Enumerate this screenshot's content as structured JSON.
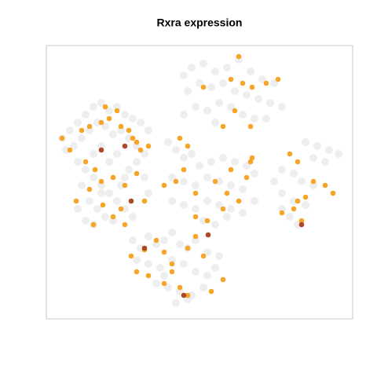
{
  "chart_data": {
    "type": "scatter",
    "title": "Rxra expression",
    "xlim": [
      0,
      390
    ],
    "ylim": [
      0,
      348
    ],
    "series": [
      {
        "color": "#e3e3e3",
        "x": [
          20,
          30,
          40,
          50,
          60,
          70,
          80,
          90,
          100,
          110,
          120,
          130,
          25,
          35,
          45,
          55,
          65,
          75,
          85,
          95,
          105,
          115,
          125,
          40,
          50,
          60,
          70,
          80,
          90,
          100,
          110,
          45,
          55,
          65,
          75,
          85,
          95,
          105,
          115,
          125,
          60,
          70,
          80,
          90,
          100,
          50,
          60,
          70,
          40,
          130,
          175,
          185,
          200,
          215,
          230,
          245,
          260,
          275,
          290,
          180,
          195,
          210,
          225,
          240,
          255,
          270,
          285,
          300,
          190,
          205,
          220,
          235,
          250,
          265,
          280,
          175,
          215,
          155,
          165,
          175,
          185,
          195,
          210,
          225,
          240,
          255,
          265,
          160,
          175,
          190,
          205,
          220,
          235,
          250,
          160,
          175,
          190,
          205,
          220,
          235,
          250,
          265,
          200,
          215,
          230,
          330,
          345,
          360,
          372,
          340,
          355,
          300,
          315,
          325,
          340,
          300,
          315,
          330,
          310,
          320,
          300,
          290,
          110,
          120,
          130,
          140,
          150,
          160,
          170,
          180,
          190,
          205,
          220,
          115,
          130,
          145,
          160,
          175,
          190,
          205,
          140,
          155,
          170,
          185,
          165,
          180,
          150,
          200,
          215
        ],
        "y": [
          230,
          240,
          250,
          260,
          270,
          275,
          265,
          270,
          260,
          255,
          250,
          240,
          215,
          220,
          230,
          240,
          250,
          245,
          235,
          240,
          230,
          220,
          210,
          200,
          190,
          180,
          170,
          160,
          150,
          140,
          130,
          170,
          150,
          140,
          130,
          125,
          170,
          190,
          200,
          180,
          210,
          220,
          200,
          210,
          180,
          125,
          120,
          160,
          140,
          160,
          310,
          320,
          325,
          315,
          320,
          330,
          315,
          305,
          300,
          290,
          300,
          295,
          300,
          290,
          285,
          280,
          275,
          270,
          270,
          265,
          275,
          270,
          260,
          255,
          255,
          260,
          250,
          225,
          215,
          205,
          210,
          195,
          200,
          205,
          200,
          195,
          185,
          180,
          175,
          170,
          180,
          175,
          170,
          165,
          150,
          145,
          140,
          150,
          145,
          140,
          135,
          150,
          125,
          120,
          130,
          225,
          220,
          215,
          210,
          205,
          200,
          190,
          185,
          175,
          170,
          160,
          150,
          145,
          130,
          120,
          140,
          175,
          100,
          90,
          105,
          95,
          100,
          110,
          95,
          90,
          100,
          85,
          80,
          75,
          70,
          65,
          75,
          70,
          60,
          55,
          45,
          40,
          35,
          30,
          20,
          25,
          55,
          40,
          65
        ]
      },
      {
        "color": "#f5a01e",
        "x": [
          20,
          30,
          45,
          55,
          70,
          80,
          95,
          105,
          110,
          115,
          120,
          130,
          50,
          62,
          70,
          85,
          100,
          115,
          38,
          55,
          72,
          85,
          95,
          100,
          60,
          125,
          75,
          90,
          245,
          235,
          250,
          262,
          280,
          295,
          200,
          225,
          260,
          240,
          170,
          180,
          175,
          165,
          190,
          215,
          235,
          260,
          255,
          245,
          225,
          205,
          190,
          150,
          262,
          230,
          310,
          320,
          340,
          355,
          365,
          315,
          325,
          320,
          300,
          330,
          108,
          125,
          140,
          150,
          160,
          180,
          200,
          115,
          130,
          150,
          170,
          180,
          210,
          225,
          160,
          190
        ],
        "y": [
          230,
          215,
          240,
          245,
          250,
          255,
          245,
          240,
          230,
          225,
          215,
          220,
          200,
          190,
          175,
          180,
          170,
          185,
          150,
          165,
          145,
          130,
          140,
          120,
          120,
          150,
          270,
          265,
          334,
          305,
          300,
          295,
          300,
          305,
          295,
          245,
          245,
          265,
          230,
          220,
          190,
          175,
          160,
          175,
          190,
          200,
          180,
          150,
          140,
          125,
          130,
          170,
          205,
          160,
          210,
          200,
          175,
          170,
          160,
          140,
          125,
          150,
          135,
          155,
          80,
          88,
          100,
          85,
          70,
          90,
          80,
          60,
          55,
          45,
          40,
          30,
          35,
          50,
          60,
          105
        ]
      },
      {
        "color": "#a8401c",
        "x": [
          100,
          70,
          108,
          325,
          206,
          175,
          125
        ],
        "y": [
          220,
          215,
          150,
          120,
          107,
          30,
          90
        ]
      }
    ]
  }
}
